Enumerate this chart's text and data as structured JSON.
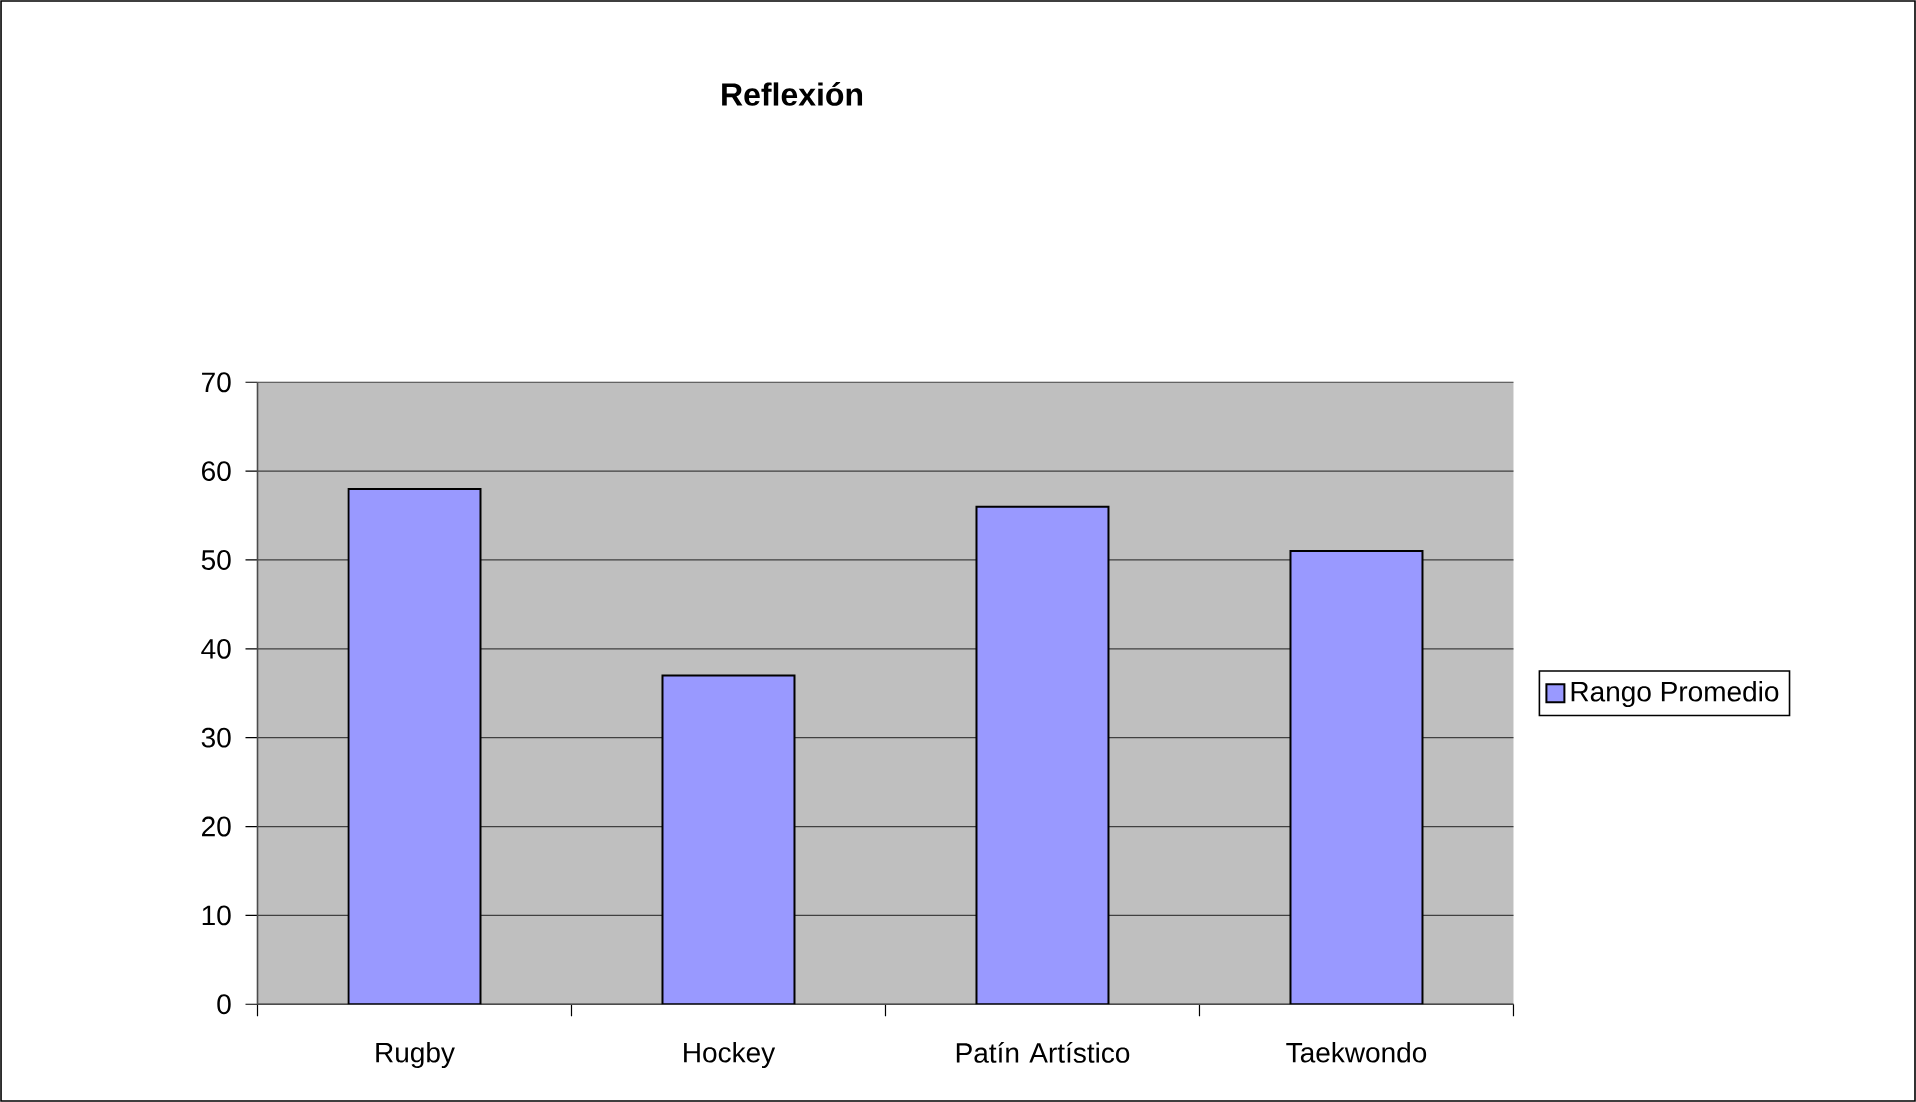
{
  "chart_data": {
    "type": "bar",
    "title": "Reflexión",
    "categories": [
      "Rugby",
      "Hockey",
      "Patín Artístico",
      "Taekwondo"
    ],
    "series": [
      {
        "name": "Rango Promedio",
        "color": "#9999ff",
        "values": [
          58,
          37,
          56,
          51
        ]
      }
    ],
    "ylim": [
      0,
      70
    ],
    "yticks": [
      0,
      10,
      20,
      30,
      40,
      50,
      60,
      70
    ],
    "grid": "y",
    "legend": "right"
  }
}
